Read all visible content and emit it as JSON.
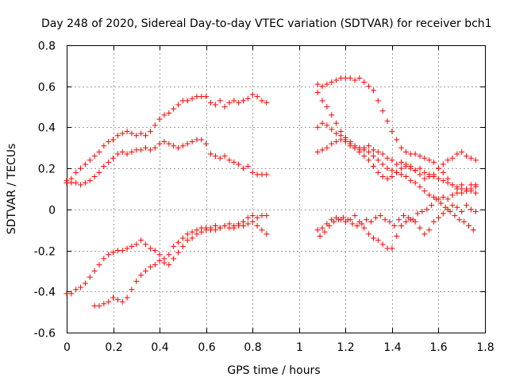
{
  "chart_data": {
    "type": "scatter",
    "title": "Day 248 of 2020, Sidereal Day-to-day VTEC variation (SDTVAR) for receiver bch1",
    "xlabel": "GPS time / hours",
    "ylabel": "SDTVAR / TECUs",
    "xlim": [
      0,
      1.8
    ],
    "ylim": [
      -0.6,
      0.8
    ],
    "xticks": [
      0,
      0.2,
      0.4,
      0.6,
      0.8,
      1,
      1.2,
      1.4,
      1.6,
      1.8
    ],
    "xtick_labels": [
      "0",
      "0.2",
      "0.4",
      "0.6",
      "0.8",
      "1",
      "1.2",
      "1.4",
      "1.6",
      "1.8"
    ],
    "yticks": [
      -0.6,
      -0.4,
      -0.2,
      0,
      0.2,
      0.4,
      0.6,
      0.8
    ],
    "ytick_labels": [
      "-0.6",
      "-0.4",
      "-0.2",
      "0",
      "0.2",
      "0.4",
      "0.6",
      "0.8"
    ],
    "grid": true,
    "marker": "+",
    "marker_color": "#ff0000",
    "series": [
      {
        "name": "trace-1",
        "x": [
          0.0,
          0.02,
          0.04,
          0.06,
          0.08,
          0.1,
          0.12,
          0.14,
          0.16,
          0.18,
          0.2,
          0.22,
          0.24,
          0.26,
          0.28,
          0.3,
          0.32,
          0.34,
          0.36,
          0.38,
          0.4,
          0.42,
          0.44,
          0.46,
          0.48,
          0.5,
          0.52,
          0.54,
          0.56,
          0.58,
          0.6,
          0.62,
          0.64,
          0.66,
          0.68,
          0.7,
          0.72,
          0.74,
          0.76,
          0.78,
          0.8,
          0.82,
          0.84,
          0.86
        ],
        "y": [
          0.13,
          0.15,
          0.18,
          0.2,
          0.22,
          0.24,
          0.26,
          0.28,
          0.31,
          0.33,
          0.34,
          0.36,
          0.37,
          0.38,
          0.37,
          0.36,
          0.37,
          0.36,
          0.38,
          0.41,
          0.44,
          0.46,
          0.47,
          0.49,
          0.51,
          0.53,
          0.53,
          0.54,
          0.55,
          0.55,
          0.55,
          0.52,
          0.51,
          0.53,
          0.5,
          0.52,
          0.53,
          0.52,
          0.53,
          0.54,
          0.56,
          0.55,
          0.53,
          0.52
        ]
      },
      {
        "name": "trace-2",
        "x": [
          0.0,
          0.02,
          0.04,
          0.06,
          0.08,
          0.1,
          0.12,
          0.14,
          0.16,
          0.18,
          0.2,
          0.22,
          0.24,
          0.26,
          0.28,
          0.3,
          0.32,
          0.34,
          0.36,
          0.38,
          0.4,
          0.42,
          0.44,
          0.46,
          0.48,
          0.5,
          0.52,
          0.54,
          0.56,
          0.58,
          0.6,
          0.62,
          0.64,
          0.66,
          0.68,
          0.7,
          0.72,
          0.74,
          0.76,
          0.78,
          0.8,
          0.82,
          0.84,
          0.86
        ],
        "y": [
          0.14,
          0.13,
          0.13,
          0.12,
          0.13,
          0.14,
          0.16,
          0.18,
          0.21,
          0.23,
          0.25,
          0.27,
          0.28,
          0.27,
          0.28,
          0.29,
          0.29,
          0.3,
          0.29,
          0.3,
          0.32,
          0.33,
          0.32,
          0.31,
          0.3,
          0.31,
          0.32,
          0.33,
          0.34,
          0.34,
          0.32,
          0.27,
          0.26,
          0.25,
          0.26,
          0.24,
          0.23,
          0.22,
          0.2,
          0.21,
          0.18,
          0.17,
          0.17,
          0.17
        ]
      },
      {
        "name": "trace-3",
        "x": [
          0.0,
          0.02,
          0.04,
          0.06,
          0.08,
          0.1,
          0.12,
          0.14,
          0.16,
          0.18,
          0.2,
          0.22,
          0.24,
          0.26,
          0.28,
          0.3,
          0.32,
          0.34,
          0.36,
          0.38,
          0.4,
          0.42,
          0.44,
          0.46,
          0.48,
          0.5,
          0.52,
          0.54,
          0.56,
          0.58,
          0.6,
          0.62,
          0.64,
          0.66,
          0.68,
          0.7,
          0.72,
          0.74,
          0.76,
          0.78,
          0.8,
          0.82,
          0.84,
          0.86
        ],
        "y": [
          -0.41,
          -0.41,
          -0.39,
          -0.38,
          -0.36,
          -0.33,
          -0.3,
          -0.27,
          -0.24,
          -0.22,
          -0.21,
          -0.2,
          -0.2,
          -0.19,
          -0.18,
          -0.17,
          -0.15,
          -0.17,
          -0.19,
          -0.2,
          -0.22,
          -0.24,
          -0.22,
          -0.18,
          -0.16,
          -0.14,
          -0.12,
          -0.11,
          -0.1,
          -0.09,
          -0.09,
          -0.1,
          -0.08,
          -0.09,
          -0.08,
          -0.09,
          -0.08,
          -0.07,
          -0.08,
          -0.07,
          -0.06,
          -0.08,
          -0.1,
          -0.12
        ]
      },
      {
        "name": "trace-4",
        "x": [
          0.12,
          0.14,
          0.16,
          0.18,
          0.2,
          0.22,
          0.24,
          0.26,
          0.28,
          0.3,
          0.32,
          0.34,
          0.36,
          0.38,
          0.4,
          0.42,
          0.44,
          0.46,
          0.48,
          0.5,
          0.52,
          0.54,
          0.56,
          0.58,
          0.6,
          0.62,
          0.64,
          0.66,
          0.68,
          0.7,
          0.72,
          0.74,
          0.76,
          0.78,
          0.8,
          0.82,
          0.84,
          0.86
        ],
        "y": [
          -0.47,
          -0.47,
          -0.46,
          -0.45,
          -0.43,
          -0.44,
          -0.45,
          -0.43,
          -0.39,
          -0.35,
          -0.32,
          -0.3,
          -0.28,
          -0.27,
          -0.25,
          -0.26,
          -0.27,
          -0.24,
          -0.21,
          -0.18,
          -0.15,
          -0.14,
          -0.12,
          -0.11,
          -0.1,
          -0.09,
          -0.1,
          -0.09,
          -0.08,
          -0.07,
          -0.09,
          -0.08,
          -0.06,
          -0.04,
          -0.03,
          -0.04,
          -0.03,
          -0.03
        ]
      },
      {
        "name": "trace-5",
        "x": [
          1.08,
          1.1,
          1.12,
          1.14,
          1.16,
          1.18,
          1.2,
          1.22,
          1.24,
          1.26,
          1.28,
          1.3,
          1.32,
          1.34,
          1.36,
          1.38,
          1.4,
          1.42,
          1.44,
          1.46,
          1.48,
          1.5,
          1.52,
          1.54,
          1.56,
          1.58,
          1.6,
          1.62,
          1.64,
          1.66,
          1.68,
          1.7,
          1.72,
          1.74,
          1.76
        ],
        "y": [
          0.61,
          0.6,
          0.61,
          0.62,
          0.63,
          0.64,
          0.64,
          0.64,
          0.63,
          0.64,
          0.62,
          0.6,
          0.58,
          0.53,
          0.48,
          0.43,
          0.38,
          0.34,
          0.3,
          0.28,
          0.27,
          0.27,
          0.26,
          0.25,
          0.24,
          0.23,
          0.2,
          0.18,
          0.15,
          0.12,
          0.1,
          0.08,
          0.09,
          0.1,
          0.12
        ]
      },
      {
        "name": "trace-6",
        "x": [
          1.08,
          1.1,
          1.12,
          1.14,
          1.16,
          1.18,
          1.2,
          1.22,
          1.24,
          1.26,
          1.28,
          1.3,
          1.32,
          1.34,
          1.36,
          1.38,
          1.4,
          1.42,
          1.44,
          1.46,
          1.48,
          1.5,
          1.52,
          1.54,
          1.56,
          1.58,
          1.6,
          1.62,
          1.64,
          1.66,
          1.68,
          1.7,
          1.72,
          1.74,
          1.76
        ],
        "y": [
          0.57,
          0.53,
          0.5,
          0.46,
          0.42,
          0.38,
          0.35,
          0.33,
          0.31,
          0.3,
          0.29,
          0.28,
          0.26,
          0.24,
          0.22,
          0.2,
          0.19,
          0.18,
          0.17,
          0.16,
          0.14,
          0.13,
          0.11,
          0.09,
          0.07,
          0.06,
          0.05,
          0.06,
          0.05,
          0.07,
          0.08,
          0.1,
          0.09,
          0.12,
          0.11
        ]
      },
      {
        "name": "trace-7",
        "x": [
          1.08,
          1.1,
          1.12,
          1.14,
          1.16,
          1.18,
          1.2,
          1.22,
          1.24,
          1.26,
          1.28,
          1.3,
          1.32,
          1.34,
          1.36,
          1.38,
          1.4,
          1.42,
          1.44,
          1.46,
          1.48,
          1.5,
          1.52,
          1.54,
          1.56,
          1.58,
          1.6,
          1.62,
          1.64,
          1.66,
          1.68,
          1.7,
          1.72,
          1.74,
          1.76
        ],
        "y": [
          0.4,
          0.42,
          0.41,
          0.39,
          0.37,
          0.36,
          0.34,
          0.32,
          0.3,
          0.29,
          0.3,
          0.31,
          0.29,
          0.28,
          0.27,
          0.25,
          0.24,
          0.22,
          0.23,
          0.21,
          0.2,
          0.19,
          0.2,
          0.18,
          0.17,
          0.16,
          0.15,
          0.14,
          0.13,
          0.12,
          0.11,
          0.12,
          0.1,
          0.09,
          0.08
        ]
      },
      {
        "name": "trace-8",
        "x": [
          1.08,
          1.1,
          1.12,
          1.14,
          1.16,
          1.18,
          1.2,
          1.22,
          1.24,
          1.26,
          1.28,
          1.3,
          1.32,
          1.34,
          1.36,
          1.38,
          1.4,
          1.42,
          1.44,
          1.46,
          1.48,
          1.5,
          1.52,
          1.54,
          1.56,
          1.58,
          1.6,
          1.62,
          1.64,
          1.66,
          1.68,
          1.7,
          1.72,
          1.74,
          1.76
        ],
        "y": [
          0.28,
          0.29,
          0.3,
          0.32,
          0.33,
          0.34,
          0.33,
          0.31,
          0.3,
          0.28,
          0.26,
          0.24,
          0.21,
          0.18,
          0.16,
          0.15,
          0.16,
          0.18,
          0.2,
          0.22,
          0.21,
          0.19,
          0.17,
          0.15,
          0.16,
          0.17,
          0.2,
          0.22,
          0.24,
          0.25,
          0.27,
          0.28,
          0.26,
          0.25,
          0.24
        ]
      },
      {
        "name": "trace-9",
        "x": [
          1.08,
          1.1,
          1.12,
          1.14,
          1.16,
          1.18,
          1.2,
          1.22,
          1.24,
          1.26,
          1.28,
          1.3,
          1.32,
          1.34,
          1.36,
          1.38,
          1.4,
          1.42,
          1.44,
          1.46,
          1.48,
          1.5,
          1.52,
          1.54,
          1.56,
          1.58,
          1.6,
          1.62,
          1.64,
          1.66,
          1.68,
          1.7,
          1.72,
          1.74,
          1.76
        ],
        "y": [
          -0.1,
          -0.09,
          -0.07,
          -0.05,
          -0.04,
          -0.05,
          -0.06,
          -0.05,
          -0.03,
          -0.06,
          -0.09,
          -0.12,
          -0.14,
          -0.15,
          -0.17,
          -0.19,
          -0.19,
          -0.13,
          -0.08,
          -0.06,
          -0.05,
          -0.06,
          -0.09,
          -0.12,
          -0.1,
          -0.06,
          -0.04,
          -0.02,
          0.0,
          0.02,
          0.01,
          -0.01,
          0.02,
          0.0,
          -0.01
        ]
      },
      {
        "name": "trace-10",
        "x": [
          1.09,
          1.11,
          1.13,
          1.15,
          1.17,
          1.19,
          1.21,
          1.23,
          1.25,
          1.27,
          1.29,
          1.31,
          1.33,
          1.35,
          1.37,
          1.39,
          1.41,
          1.43,
          1.45,
          1.47,
          1.49,
          1.51,
          1.53,
          1.55,
          1.57,
          1.59,
          1.61,
          1.63,
          1.65,
          1.67,
          1.69,
          1.71,
          1.73,
          1.75
        ],
        "y": [
          -0.13,
          -0.11,
          -0.08,
          -0.06,
          -0.05,
          -0.04,
          -0.05,
          -0.07,
          -0.08,
          -0.07,
          -0.05,
          -0.06,
          -0.04,
          -0.03,
          -0.05,
          -0.06,
          -0.08,
          -0.05,
          -0.03,
          -0.04,
          -0.05,
          -0.02,
          -0.01,
          0.0,
          0.02,
          0.05,
          0.03,
          0.01,
          -0.01,
          -0.03,
          -0.05,
          -0.06,
          -0.08,
          -0.1
        ]
      }
    ]
  }
}
